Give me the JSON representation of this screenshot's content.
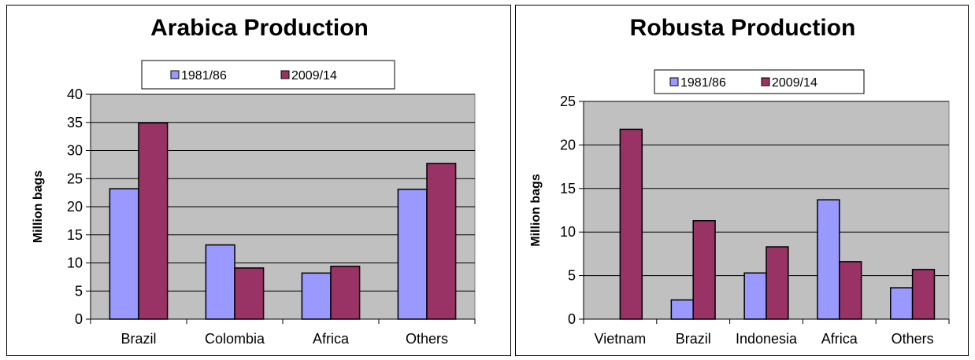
{
  "colors": {
    "series1": "#9999ff",
    "series2": "#993366",
    "plot_bg": "#c0c0c0"
  },
  "chart_data": [
    {
      "type": "bar",
      "title": "Arabica Production",
      "ylabel": "Million bags",
      "xlabel": "",
      "categories": [
        "Brazil",
        "Colombia",
        "Africa",
        "Others"
      ],
      "series": [
        {
          "name": "1981/86",
          "values": [
            23.2,
            13.2,
            8.2,
            23.1
          ]
        },
        {
          "name": "2009/14",
          "values": [
            34.9,
            9.1,
            9.4,
            27.7
          ]
        }
      ],
      "ylim": [
        0,
        40
      ],
      "yticks": [
        0,
        5,
        10,
        15,
        20,
        25,
        30,
        35,
        40
      ],
      "grid": true,
      "legend_position": "top"
    },
    {
      "type": "bar",
      "title": "Robusta Production",
      "ylabel": "Million bags",
      "xlabel": "",
      "categories": [
        "Vietnam",
        "Brazil",
        "Indonesia",
        "Africa",
        "Others"
      ],
      "series": [
        {
          "name": "1981/86",
          "values": [
            0,
            2.2,
            5.3,
            13.7,
            3.6
          ]
        },
        {
          "name": "2009/14",
          "values": [
            21.8,
            11.3,
            8.3,
            6.6,
            5.7
          ]
        }
      ],
      "ylim": [
        0,
        25
      ],
      "yticks": [
        0,
        5,
        10,
        15,
        20,
        25
      ],
      "grid": true,
      "legend_position": "top"
    }
  ]
}
